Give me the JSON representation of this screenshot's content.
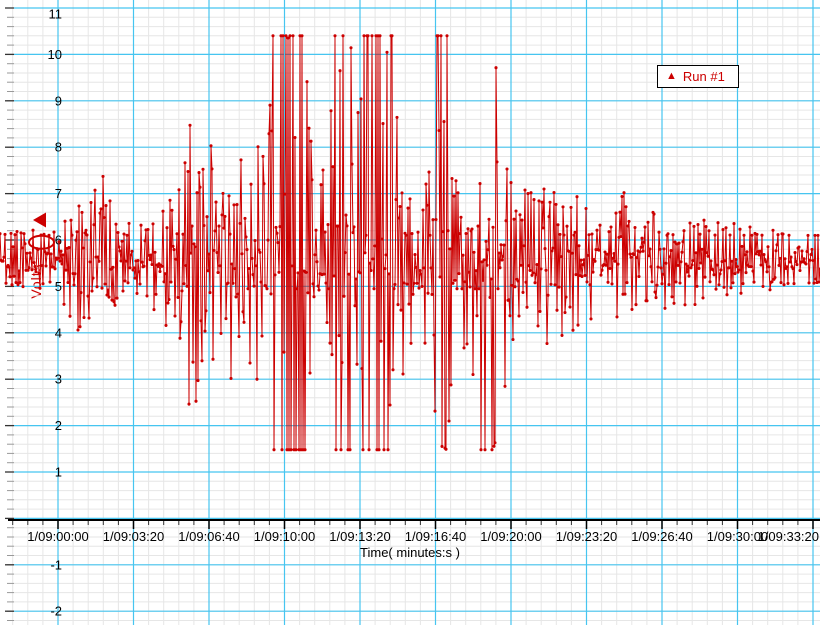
{
  "chart_data": {
    "type": "line",
    "title": "",
    "xlabel": "Time( minutes:s )",
    "ylabel": "Volts",
    "series": [
      {
        "name": "Run #1",
        "color": "#cc0000"
      }
    ],
    "legend": {
      "label": "Run #1",
      "position": "top-right"
    },
    "x_tick_labels": [
      "1/09:00:00",
      "1/09:03:20",
      "1/09:06:40",
      "1/09:10:00",
      "1/09:13:20",
      "1/09:16:40",
      "1/09:20:00",
      "1/09:23:20",
      "1/09:26:40",
      "1/09:30:00",
      "1/09:33:20"
    ],
    "y_tick_labels": [
      11,
      10,
      9,
      8,
      7,
      6,
      5,
      4,
      3,
      2,
      1,
      -1,
      -2
    ],
    "y_range": [
      -2,
      11
    ],
    "grid": {
      "minor_per_major": 5,
      "major_color": "#46c5f0",
      "minor_color": "#e6e6e6"
    },
    "clip_high": 10.4,
    "clip_low": 1.48,
    "baseline": 5.58,
    "marker_triangle_value": 6.43,
    "marker_ellipse_value": 5.95,
    "envelope": [
      [
        0,
        5.0,
        6.15,
        0.3
      ],
      [
        20,
        4.9,
        6.25,
        0.34
      ],
      [
        45,
        4.8,
        6.35,
        0.35
      ],
      [
        58,
        4.5,
        6.6,
        0.4
      ],
      [
        66,
        4.0,
        7.2,
        0.45
      ],
      [
        72,
        3.7,
        8.05,
        0.5
      ],
      [
        80,
        3.8,
        7.5,
        0.5
      ],
      [
        92,
        4.3,
        7.0,
        0.45
      ],
      [
        103,
        4.4,
        7.5,
        0.4
      ],
      [
        112,
        4.5,
        6.7,
        0.4
      ],
      [
        125,
        4.75,
        6.45,
        0.38
      ],
      [
        140,
        4.7,
        6.5,
        0.38
      ],
      [
        152,
        4.5,
        6.65,
        0.4
      ],
      [
        163,
        4.1,
        7.1,
        0.45
      ],
      [
        172,
        3.4,
        7.8,
        0.5
      ],
      [
        181,
        2.7,
        8.4,
        0.5
      ],
      [
        190,
        2.1,
        9.1,
        0.5
      ],
      [
        197,
        2.3,
        8.6,
        0.5
      ],
      [
        205,
        2.7,
        8.1,
        0.5
      ],
      [
        213,
        2.5,
        8.2,
        0.5
      ],
      [
        222,
        2.2,
        8.6,
        0.5
      ],
      [
        230,
        2.6,
        8.2,
        0.5
      ],
      [
        238,
        3.0,
        7.8,
        0.5
      ],
      [
        245,
        2.2,
        8.2,
        0.52
      ],
      [
        252,
        1.9,
        8.4,
        0.52
      ],
      [
        260,
        2.6,
        8.0,
        0.5
      ],
      [
        267,
        2.0,
        8.8,
        0.52
      ],
      [
        273,
        1.48,
        10.4,
        0.55
      ],
      [
        280,
        1.48,
        10.4,
        0.6
      ],
      [
        305,
        1.48,
        10.4,
        0.6
      ],
      [
        312,
        2.0,
        9.2,
        0.5
      ],
      [
        320,
        3.0,
        8.2,
        0.48
      ],
      [
        328,
        2.2,
        9.0,
        0.5
      ],
      [
        334,
        1.48,
        10.4,
        0.6
      ],
      [
        350,
        1.48,
        10.4,
        0.58
      ],
      [
        357,
        2.8,
        8.6,
        0.5
      ],
      [
        363,
        1.48,
        10.4,
        0.6
      ],
      [
        393,
        1.48,
        10.4,
        0.6
      ],
      [
        400,
        2.4,
        9.0,
        0.52
      ],
      [
        408,
        2.6,
        8.6,
        0.5
      ],
      [
        418,
        2.8,
        8.4,
        0.5
      ],
      [
        428,
        2.7,
        8.6,
        0.5
      ],
      [
        437,
        1.6,
        10.4,
        0.55
      ],
      [
        447,
        1.48,
        10.4,
        0.55
      ],
      [
        452,
        3.0,
        8.2,
        0.5
      ],
      [
        462,
        3.3,
        8.0,
        0.48
      ],
      [
        470,
        2.2,
        9.0,
        0.52
      ],
      [
        476,
        1.48,
        10.4,
        0.6
      ],
      [
        493,
        1.48,
        10.4,
        0.6
      ],
      [
        500,
        2.0,
        8.8,
        0.52
      ],
      [
        508,
        3.2,
        8.0,
        0.48
      ],
      [
        518,
        3.3,
        7.8,
        0.45
      ],
      [
        528,
        3.2,
        7.7,
        0.45
      ],
      [
        538,
        3.4,
        7.7,
        0.45
      ],
      [
        548,
        3.8,
        7.3,
        0.42
      ],
      [
        560,
        3.9,
        7.1,
        0.4
      ],
      [
        575,
        4.0,
        7.0,
        0.4
      ],
      [
        590,
        3.9,
        7.0,
        0.4
      ],
      [
        605,
        3.9,
        7.0,
        0.4
      ],
      [
        620,
        4.0,
        7.2,
        0.38
      ],
      [
        635,
        4.2,
        6.9,
        0.38
      ],
      [
        650,
        4.3,
        6.8,
        0.36
      ],
      [
        665,
        4.5,
        6.7,
        0.35
      ],
      [
        685,
        4.5,
        6.6,
        0.35
      ],
      [
        705,
        4.7,
        6.5,
        0.33
      ],
      [
        725,
        4.7,
        6.4,
        0.33
      ],
      [
        745,
        4.85,
        6.3,
        0.3
      ],
      [
        765,
        4.9,
        6.25,
        0.3
      ],
      [
        785,
        5.0,
        6.15,
        0.28
      ],
      [
        805,
        5.05,
        6.1,
        0.28
      ],
      [
        820,
        5.05,
        6.1,
        0.28
      ]
    ]
  },
  "colors": {
    "trace": "#cc0000",
    "grid_major": "#46c5f0",
    "grid_minor": "#e6e6e6",
    "axis": "#000000"
  }
}
